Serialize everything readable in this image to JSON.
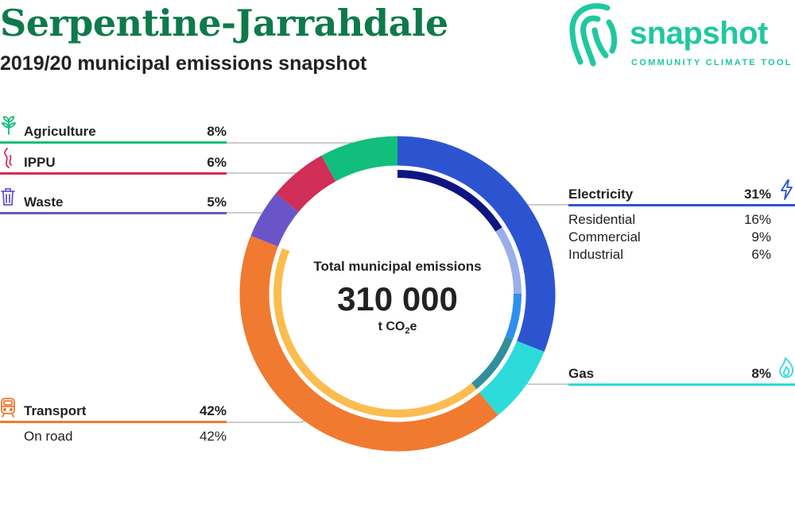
{
  "header": {
    "title": "Serpentine-Jarrahdale",
    "subtitle": "2019/20 municipal emissions snapshot"
  },
  "logo": {
    "word": "snapshot",
    "tagline": "COMMUNITY CLIMATE TOOL",
    "color": "#1fc8a0"
  },
  "chart_data": {
    "type": "pie",
    "style": "donut",
    "center": {
      "label": "Total municipal emissions",
      "value": "310 000",
      "unit_prefix": "t CO",
      "unit_sub": "2",
      "unit_suffix": "e"
    },
    "sectors": [
      {
        "name": "Electricity",
        "percent": 31,
        "percent_label": "31%",
        "color": "#2d54d0",
        "icon": "lightning-icon",
        "subcategories": [
          {
            "name": "Residential",
            "percent": 16,
            "percent_label": "16%",
            "color": "#0f1580"
          },
          {
            "name": "Commercial",
            "percent": 9,
            "percent_label": "9%",
            "color": "#9aaee8"
          },
          {
            "name": "Industrial",
            "percent": 6,
            "percent_label": "6%",
            "color": "#2e8ff0"
          }
        ]
      },
      {
        "name": "Gas",
        "percent": 8,
        "percent_label": "8%",
        "color": "#2ddbdb",
        "icon": "flame-icon",
        "subcategories": [
          {
            "percent": 8,
            "color": "#2f8f9c"
          }
        ]
      },
      {
        "name": "Transport",
        "percent": 42,
        "percent_label": "42%",
        "color": "#f07a30",
        "icon": "train-icon",
        "subcategories": [
          {
            "name": "On road",
            "percent": 42,
            "percent_label": "42%",
            "color": "#fbbd50"
          }
        ]
      },
      {
        "name": "Waste",
        "percent": 5,
        "percent_label": "5%",
        "color": "#6a55c8",
        "icon": "trash-icon"
      },
      {
        "name": "IPPU",
        "percent": 6,
        "percent_label": "6%",
        "color": "#d02e56",
        "icon": "smoke-icon"
      },
      {
        "name": "Agriculture",
        "percent": 8,
        "percent_label": "8%",
        "color": "#12be7c",
        "icon": "plant-icon"
      }
    ]
  }
}
